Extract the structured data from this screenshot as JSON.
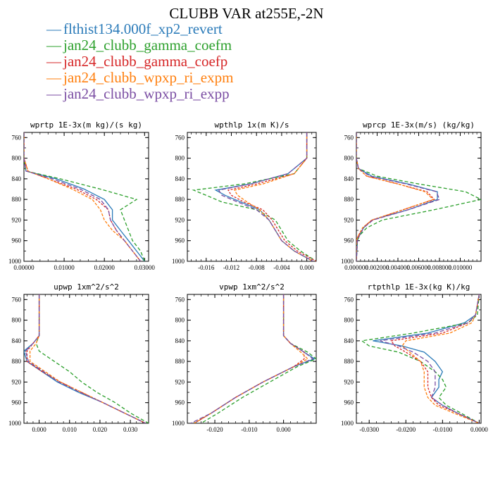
{
  "title": "CLUBB VAR at255E,-2N",
  "legend": [
    {
      "label": "flthist134.000f_xp2_revert",
      "color": "#2b7bb9"
    },
    {
      "label": "jan24_clubb_gamma_coefm",
      "color": "#2ca02c"
    },
    {
      "label": "jan24_clubb_gamma_coefp",
      "color": "#d62728"
    },
    {
      "label": "jan24_clubb_wpxp_ri_expm",
      "color": "#ff7f0e"
    },
    {
      "label": "jan24_clubb_wpxp_ri_expp",
      "color": "#7b4ea3"
    }
  ],
  "chart_data": [
    {
      "type": "line",
      "title": "wprtp  1E-3x(m kg)/(s kg)",
      "xlim": [
        0,
        0.031
      ],
      "ylim": [
        1000,
        750
      ],
      "yreverse": true,
      "xticks": [
        0,
        0.01,
        0.02,
        0.03
      ],
      "xticklabels": [
        "0.00000",
        "0.01000",
        "0.02000",
        "0.03000"
      ],
      "yticks": [
        760,
        800,
        840,
        880,
        920,
        960,
        1000
      ],
      "y": [
        750,
        800,
        825,
        840,
        860,
        880,
        900,
        920,
        940,
        960,
        980,
        1000
      ],
      "series": [
        {
          "x": [
            0,
            0,
            0.0005,
            0.008,
            0.015,
            0.02,
            0.022,
            0.022,
            0.024,
            0.026,
            0.028,
            0.03
          ]
        },
        {
          "x": [
            0,
            0,
            0.0005,
            0.009,
            0.019,
            0.028,
            0.024,
            0.025,
            0.026,
            0.027,
            0.029,
            0.03
          ]
        },
        {
          "x": [
            0,
            0,
            0.001,
            0.006,
            0.013,
            0.018,
            0.021,
            0.0215,
            0.023,
            0.025,
            0.027,
            0.029
          ]
        },
        {
          "x": [
            0,
            0,
            0.001,
            0.006,
            0.012,
            0.017,
            0.019,
            0.02,
            0.022,
            0.025,
            0.027,
            0.029
          ]
        },
        {
          "x": [
            0,
            0,
            0.0005,
            0.007,
            0.014,
            0.019,
            0.021,
            0.0215,
            0.023,
            0.025,
            0.027,
            0.029
          ]
        }
      ]
    },
    {
      "type": "line",
      "title": "wpthlp  1x(m K)/s",
      "xlim": [
        -0.019,
        0.0015
      ],
      "ylim": [
        1000,
        750
      ],
      "yreverse": true,
      "xticks": [
        -0.016,
        -0.012,
        -0.008,
        -0.004,
        0
      ],
      "xticklabels": [
        "-0.016",
        "-0.012",
        "-0.008",
        "-0.004",
        "0.000"
      ],
      "yticks": [
        760,
        800,
        840,
        880,
        920,
        960,
        1000
      ],
      "y": [
        750,
        800,
        830,
        850,
        862,
        872,
        885,
        900,
        920,
        940,
        960,
        980,
        1000
      ],
      "series": [
        {
          "x": [
            0,
            0,
            -0.003,
            -0.009,
            -0.0145,
            -0.013,
            -0.0105,
            -0.0075,
            -0.006,
            -0.005,
            -0.004,
            -0.002,
            0.001
          ]
        },
        {
          "x": [
            0,
            0,
            -0.002,
            -0.01,
            -0.018,
            -0.016,
            -0.0135,
            -0.008,
            -0.005,
            -0.004,
            -0.003,
            -0.001,
            0.0015
          ]
        },
        {
          "x": [
            0,
            0,
            -0.002,
            -0.008,
            -0.0125,
            -0.012,
            -0.01,
            -0.007,
            -0.0055,
            -0.0045,
            -0.0035,
            -0.0015,
            0.0015
          ]
        },
        {
          "x": [
            0,
            0,
            -0.002,
            -0.007,
            -0.0115,
            -0.011,
            -0.0095,
            -0.0075,
            -0.006,
            -0.005,
            -0.004,
            -0.002,
            0.001
          ]
        },
        {
          "x": [
            0,
            0,
            -0.003,
            -0.009,
            -0.014,
            -0.0135,
            -0.011,
            -0.008,
            -0.006,
            -0.005,
            -0.004,
            -0.002,
            0.001
          ]
        }
      ]
    },
    {
      "type": "line",
      "title": "wprcp  1E-3x(m/s) (kg/kg)",
      "xlim": [
        0,
        0.012
      ],
      "ylim": [
        1000,
        750
      ],
      "yreverse": true,
      "xticks": [
        0,
        0.002,
        0.004,
        0.006,
        0.008,
        0.01
      ],
      "xticklabels": [
        "0.000000",
        "0.002000",
        "0.004000",
        "0.006000",
        "0.008000",
        "0.010000"
      ],
      "yticks": [
        760,
        800,
        840,
        880,
        920,
        960,
        1000
      ],
      "y": [
        750,
        800,
        820,
        835,
        850,
        865,
        880,
        900,
        920,
        935,
        950,
        960,
        1000
      ],
      "series": [
        {
          "x": [
            0,
            0,
            0.0002,
            0.0015,
            0.005,
            0.0078,
            0.0078,
            0.005,
            0.0015,
            0.0007,
            0.0003,
            0.0001,
            0
          ]
        },
        {
          "x": [
            0,
            0,
            0.0002,
            0.002,
            0.006,
            0.0105,
            0.012,
            0.0075,
            0.0025,
            0.001,
            0.0003,
            0.0001,
            0
          ]
        },
        {
          "x": [
            0,
            0,
            0.0002,
            0.001,
            0.004,
            0.0068,
            0.0075,
            0.0045,
            0.0015,
            0.0006,
            0.0002,
            0,
            0
          ]
        },
        {
          "x": [
            0,
            0,
            0.0002,
            0.001,
            0.004,
            0.0066,
            0.0074,
            0.0045,
            0.0015,
            0.0006,
            0.0002,
            0,
            0
          ]
        },
        {
          "x": [
            0,
            0,
            0.0002,
            0.0013,
            0.0048,
            0.0077,
            0.008,
            0.005,
            0.0016,
            0.0007,
            0.0003,
            0.0001,
            0
          ]
        }
      ]
    },
    {
      "type": "line",
      "title": "upwp  1xm^2/s^2",
      "xlim": [
        -0.005,
        0.036
      ],
      "ylim": [
        1000,
        750
      ],
      "yreverse": true,
      "xticks": [
        0,
        0.01,
        0.02,
        0.03
      ],
      "xticklabels": [
        "0.000",
        "0.010",
        "0.020",
        "0.030"
      ],
      "yticks": [
        760,
        800,
        840,
        880,
        920,
        960,
        1000
      ],
      "y": [
        750,
        830,
        845,
        860,
        880,
        900,
        920,
        940,
        960,
        980,
        1000
      ],
      "series": [
        {
          "x": [
            0,
            0,
            -0.002,
            -0.005,
            -0.004,
            0.001,
            0.006,
            0.013,
            0.021,
            0.028,
            0.035
          ]
        },
        {
          "x": [
            0,
            0,
            -0.001,
            0,
            0.005,
            0.01,
            0.014,
            0.019,
            0.025,
            0.03,
            0.036
          ]
        },
        {
          "x": [
            0,
            0,
            -0.002,
            -0.004,
            -0.004,
            0.001,
            0.007,
            0.014,
            0.021,
            0.028,
            0.035
          ]
        },
        {
          "x": [
            0,
            0,
            -0.001,
            -0.003,
            -0.003,
            0.002,
            0.007,
            0.014,
            0.021,
            0.028,
            0.035
          ]
        },
        {
          "x": [
            0,
            0,
            -0.002,
            -0.0045,
            -0.0035,
            0.0015,
            0.0065,
            0.0135,
            0.021,
            0.028,
            0.035
          ]
        }
      ]
    },
    {
      "type": "line",
      "title": "vpwp  1xm^2/s^2",
      "xlim": [
        -0.028,
        0.0095
      ],
      "ylim": [
        1000,
        750
      ],
      "yreverse": true,
      "xticks": [
        -0.02,
        -0.01,
        0
      ],
      "xticklabels": [
        "-0.020",
        "-0.010",
        "0.000"
      ],
      "yticks": [
        760,
        800,
        840,
        880,
        920,
        960,
        1000
      ],
      "y": [
        750,
        830,
        845,
        862,
        875,
        890,
        920,
        950,
        980,
        1000
      ],
      "series": [
        {
          "x": [
            0,
            0,
            0.002,
            0.006,
            0.009,
            0.003,
            -0.006,
            -0.014,
            -0.021,
            -0.026
          ]
        },
        {
          "x": [
            0,
            0,
            0.002,
            0.007,
            0.0095,
            0.004,
            -0.004,
            -0.012,
            -0.019,
            -0.024
          ]
        },
        {
          "x": [
            0,
            0,
            0.002,
            0.006,
            0.006,
            0.003,
            -0.006,
            -0.014,
            -0.021,
            -0.026
          ]
        },
        {
          "x": [
            0,
            0,
            0.002,
            0.005,
            0.007,
            0.003,
            -0.006,
            -0.014,
            -0.021,
            -0.026
          ]
        },
        {
          "x": [
            0,
            0,
            0.002,
            0.006,
            0.0085,
            0.003,
            -0.006,
            -0.014,
            -0.021,
            -0.027
          ]
        }
      ]
    },
    {
      "type": "line",
      "title": "rtpthlp  1E-3x(kg K)/kg",
      "xlim": [
        -0.0335,
        0.0005
      ],
      "ylim": [
        1000,
        750
      ],
      "yreverse": true,
      "xticks": [
        -0.03,
        -0.02,
        -0.01,
        0
      ],
      "xticklabels": [
        "-0.0300",
        "-0.0200",
        "-0.0100",
        "0.0000"
      ],
      "yticks": [
        760,
        800,
        840,
        880,
        920,
        960,
        1000
      ],
      "y": [
        750,
        790,
        805,
        825,
        840,
        850,
        862,
        880,
        900,
        915,
        930,
        950,
        965,
        980,
        1000
      ],
      "series": [
        {
          "x": [
            0,
            -0.001,
            -0.004,
            -0.014,
            -0.029,
            -0.021,
            -0.015,
            -0.012,
            -0.01,
            -0.011,
            -0.011,
            -0.013,
            -0.01,
            -0.006,
            0
          ]
        },
        {
          "x": [
            0,
            -0.0005,
            -0.003,
            -0.018,
            -0.032,
            -0.03,
            -0.022,
            -0.016,
            -0.012,
            -0.01,
            -0.009,
            -0.011,
            -0.009,
            -0.005,
            0
          ]
        },
        {
          "x": [
            0,
            -0.001,
            -0.003,
            -0.01,
            -0.024,
            -0.023,
            -0.02,
            -0.016,
            -0.014,
            -0.014,
            -0.014,
            -0.013,
            -0.011,
            -0.006,
            0
          ]
        },
        {
          "x": [
            0,
            -0.001,
            -0.002,
            -0.008,
            -0.02,
            -0.021,
            -0.019,
            -0.016,
            -0.015,
            -0.015,
            -0.015,
            -0.014,
            -0.012,
            -0.007,
            0
          ]
        },
        {
          "x": [
            0,
            -0.001,
            -0.003,
            -0.012,
            -0.027,
            -0.022,
            -0.018,
            -0.014,
            -0.012,
            -0.012,
            -0.012,
            -0.013,
            -0.01,
            -0.006,
            0
          ]
        }
      ]
    }
  ]
}
